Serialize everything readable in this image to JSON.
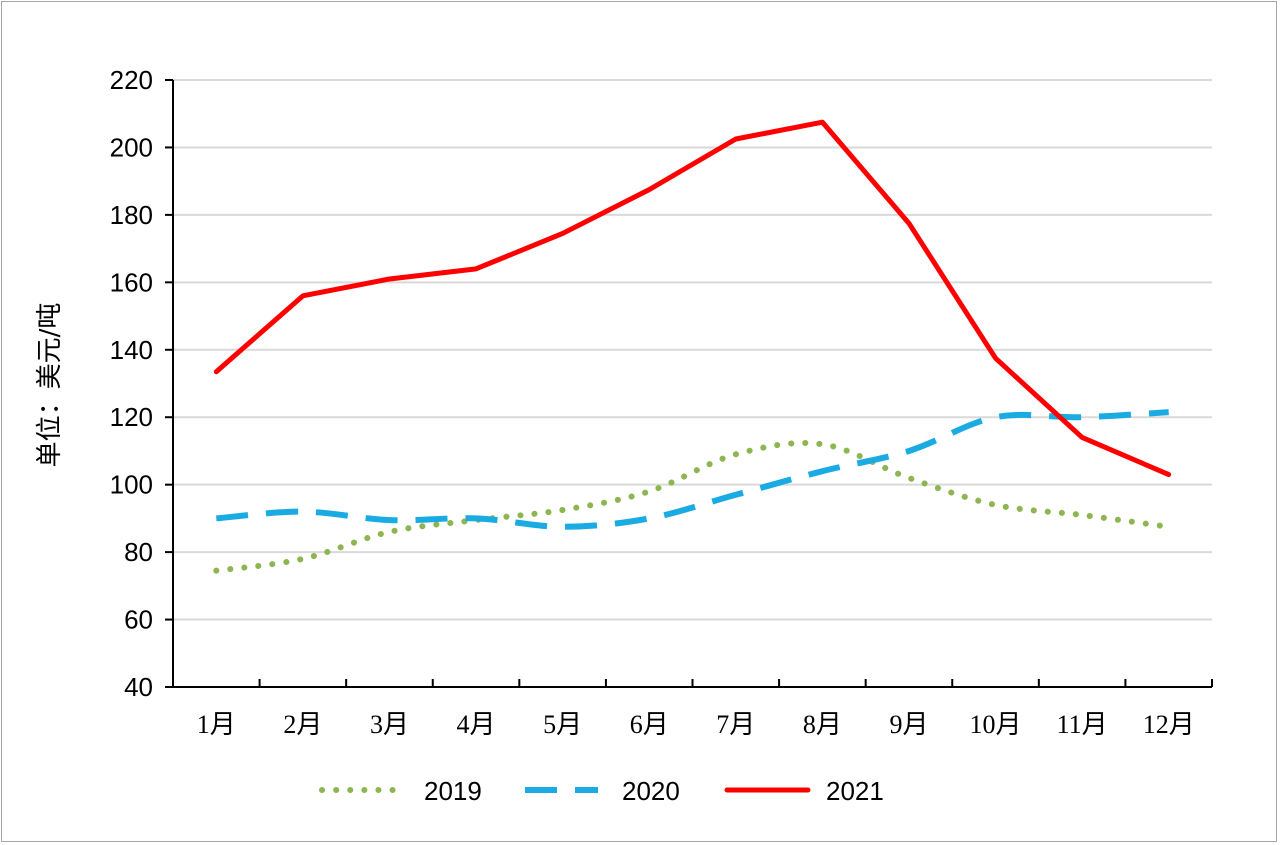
{
  "chart_data": {
    "type": "line",
    "ylabel": "单位：美元/吨",
    "categories": [
      "1月",
      "2月",
      "3月",
      "4月",
      "5月",
      "6月",
      "7月",
      "8月",
      "9月",
      "10月",
      "11月",
      "12月"
    ],
    "ylim": [
      40,
      220
    ],
    "yticks": [
      40,
      60,
      80,
      100,
      120,
      140,
      160,
      180,
      200,
      220
    ],
    "grid": true,
    "legend_position": "bottom",
    "series": [
      {
        "name": "2019",
        "style": "dotted",
        "color": "#8db550",
        "values": [
          74.5,
          78,
          86,
          89.5,
          92.5,
          98,
          109,
          112,
          102,
          94,
          91,
          87.5
        ]
      },
      {
        "name": "2020",
        "style": "dashed",
        "color": "#1aabe3",
        "values": [
          90,
          92,
          89.5,
          90,
          87.5,
          90,
          97,
          104,
          110,
          120,
          120,
          121.5
        ]
      },
      {
        "name": "2021",
        "style": "solid",
        "color": "#ff0000",
        "values": [
          133.5,
          156,
          161,
          164,
          174.5,
          187.5,
          202.5,
          207.5,
          177.5,
          137.5,
          114,
          103
        ]
      }
    ]
  }
}
